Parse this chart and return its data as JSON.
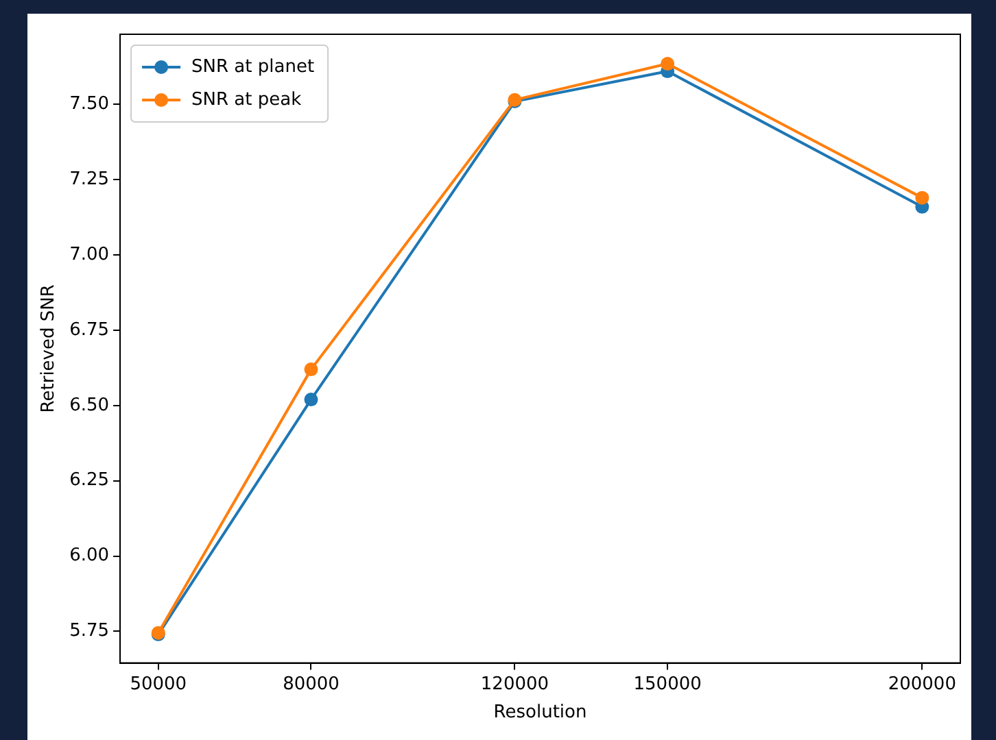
{
  "chart_data": {
    "type": "line",
    "xlabel": "Resolution",
    "ylabel": "Retrieved SNR",
    "x": [
      50000,
      80000,
      120000,
      150000,
      200000
    ],
    "series": [
      {
        "name": "SNR at planet",
        "color": "#1f77b4",
        "values": [
          5.74,
          6.52,
          7.51,
          7.61,
          7.16
        ]
      },
      {
        "name": "SNR at peak",
        "color": "#ff7f0e",
        "values": [
          5.745,
          6.62,
          7.515,
          7.635,
          7.19
        ]
      }
    ],
    "xlim": [
      42500,
      207500
    ],
    "xticks": [
      50000,
      80000,
      120000,
      150000,
      200000
    ],
    "ylim": [
      5.645,
      7.733
    ],
    "yticks": [
      5.75,
      {
        "value": 6,
        "label": "6.00"
      },
      6.25,
      {
        "value": 6.5,
        "label": "6.50"
      },
      6.75,
      {
        "value": 7,
        "label": "7.00"
      },
      7.25,
      {
        "value": 7.5,
        "label": "7.50"
      }
    ],
    "grid": false,
    "legend": "top left",
    "marker": "circle",
    "line_style": "solid"
  }
}
